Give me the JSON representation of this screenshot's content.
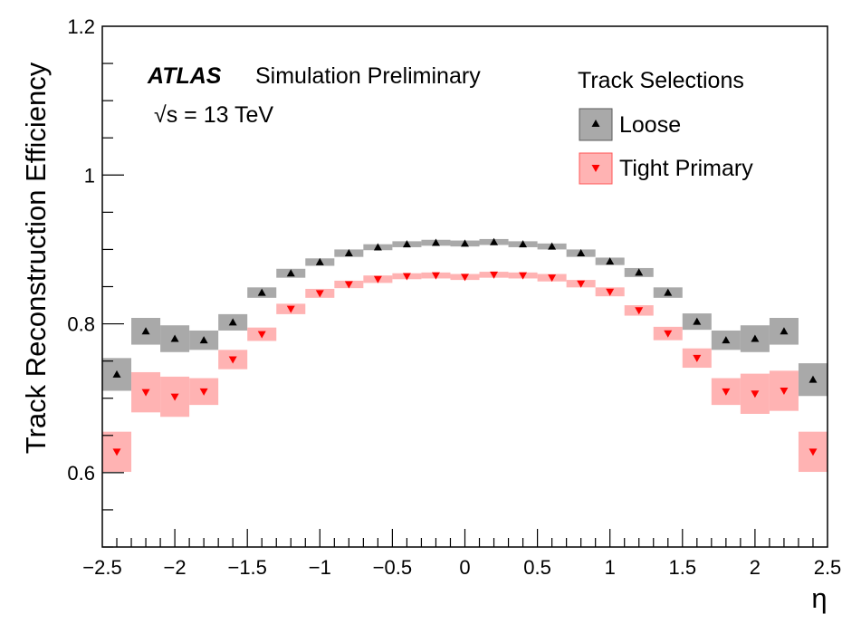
{
  "chart_data": {
    "type": "scatter",
    "xlabel": "η",
    "ylabel": "Track Reconstruction Efficiency",
    "xlim": [
      -2.5,
      2.5
    ],
    "ylim": [
      0.5,
      1.2
    ],
    "x_tick_labels": [
      "−2.5",
      "−2",
      "−1.5",
      "−1",
      "−0.5",
      "0",
      "0.5",
      "1",
      "1.5",
      "2",
      "2.5"
    ],
    "y_tick_labels": [
      "0.6",
      "0.8",
      "1",
      "1.2"
    ],
    "annotation": {
      "experiment": "ATLAS",
      "label": "Simulation Preliminary",
      "energy": "√s = 13 TeV"
    },
    "legend": {
      "title": "Track Selections",
      "placement": "top-right"
    },
    "bins": [
      [
        -2.5,
        -2.3
      ],
      [
        -2.3,
        -2.1
      ],
      [
        -2.1,
        -1.9
      ],
      [
        -1.9,
        -1.7
      ],
      [
        -1.7,
        -1.5
      ],
      [
        -1.5,
        -1.3
      ],
      [
        -1.3,
        -1.1
      ],
      [
        -1.1,
        -0.9
      ],
      [
        -0.9,
        -0.7
      ],
      [
        -0.7,
        -0.5
      ],
      [
        -0.5,
        -0.3
      ],
      [
        -0.3,
        -0.1
      ],
      [
        -0.1,
        0.1
      ],
      [
        0.1,
        0.3
      ],
      [
        0.3,
        0.5
      ],
      [
        0.5,
        0.7
      ],
      [
        0.7,
        0.9
      ],
      [
        0.9,
        1.1
      ],
      [
        1.1,
        1.3
      ],
      [
        1.3,
        1.5
      ],
      [
        1.5,
        1.7
      ],
      [
        1.7,
        1.9
      ],
      [
        1.9,
        2.1
      ],
      [
        2.1,
        2.3
      ],
      [
        2.3,
        2.5
      ]
    ],
    "series": [
      {
        "name": "Loose",
        "marker": "triangle-up",
        "marker_color": "#000000",
        "band_color": "#a9a9a9",
        "x": [
          -2.4,
          -2.2,
          -2.0,
          -1.8,
          -1.6,
          -1.4,
          -1.2,
          -1.0,
          -0.8,
          -0.6,
          -0.4,
          -0.2,
          0.0,
          0.2,
          0.4,
          0.6,
          0.8,
          1.0,
          1.2,
          1.4,
          1.6,
          1.8,
          2.0,
          2.2,
          2.4
        ],
        "values": [
          0.732,
          0.79,
          0.78,
          0.778,
          0.802,
          0.842,
          0.868,
          0.883,
          0.895,
          0.903,
          0.907,
          0.909,
          0.908,
          0.91,
          0.907,
          0.904,
          0.895,
          0.884,
          0.869,
          0.842,
          0.803,
          0.778,
          0.78,
          0.79,
          0.725
        ],
        "unc": [
          0.022,
          0.018,
          0.018,
          0.013,
          0.011,
          0.007,
          0.006,
          0.005,
          0.005,
          0.004,
          0.004,
          0.004,
          0.004,
          0.004,
          0.004,
          0.004,
          0.005,
          0.005,
          0.006,
          0.007,
          0.011,
          0.013,
          0.018,
          0.018,
          0.022
        ]
      },
      {
        "name": "Tight Primary",
        "marker": "triangle-down",
        "marker_color": "#ff0000",
        "band_color": "#ffb3b3",
        "x": [
          -2.4,
          -2.2,
          -2.0,
          -1.8,
          -1.6,
          -1.4,
          -1.2,
          -1.0,
          -0.8,
          -0.6,
          -0.4,
          -0.2,
          0.0,
          0.2,
          0.4,
          0.6,
          0.8,
          1.0,
          1.2,
          1.4,
          1.6,
          1.8,
          2.0,
          2.2,
          2.4
        ],
        "values": [
          0.628,
          0.708,
          0.702,
          0.709,
          0.752,
          0.786,
          0.82,
          0.841,
          0.853,
          0.86,
          0.864,
          0.865,
          0.863,
          0.866,
          0.865,
          0.862,
          0.854,
          0.843,
          0.818,
          0.787,
          0.754,
          0.709,
          0.706,
          0.71,
          0.628
        ],
        "unc": [
          0.027,
          0.027,
          0.027,
          0.018,
          0.013,
          0.009,
          0.007,
          0.006,
          0.005,
          0.005,
          0.004,
          0.004,
          0.004,
          0.004,
          0.004,
          0.005,
          0.005,
          0.006,
          0.007,
          0.009,
          0.013,
          0.018,
          0.027,
          0.027,
          0.027
        ]
      }
    ]
  }
}
